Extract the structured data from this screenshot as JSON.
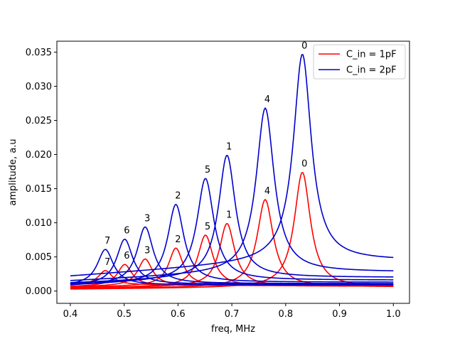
{
  "chart_data": {
    "type": "line",
    "title": "",
    "xlabel": "freq, MHz",
    "ylabel": "amplitude, a.u",
    "xlim": [
      0.375,
      1.03
    ],
    "ylim": [
      -0.0018,
      0.0366
    ],
    "xticks": [
      "0.4",
      "0.5",
      "0.6",
      "0.7",
      "0.8",
      "0.9",
      "1.0"
    ],
    "xtick_values": [
      0.4,
      0.5,
      0.6,
      0.7,
      0.8,
      0.9,
      1.0
    ],
    "yticks": [
      "0.000",
      "0.005",
      "0.010",
      "0.015",
      "0.020",
      "0.025",
      "0.030",
      "0.035"
    ],
    "ytick_values": [
      0,
      0.005,
      0.01,
      0.015,
      0.02,
      0.025,
      0.03,
      0.035
    ],
    "x_range": [
      0.4,
      1.0
    ],
    "grid": false,
    "legend_position": "top-right",
    "legend": [
      {
        "label": "C_in = 1pF",
        "color": "#ff0000"
      },
      {
        "label": "C_in = 2pF",
        "color": "#0000cc"
      }
    ],
    "series": [
      {
        "group": "C_in = 1pF",
        "color": "#ff0000",
        "label": "0",
        "peak_x": 0.831,
        "peak_y": 0.0174,
        "width": 0.018,
        "tail": 0.00055
      },
      {
        "group": "C_in = 1pF",
        "color": "#ff0000",
        "label": "4",
        "peak_x": 0.762,
        "peak_y": 0.0134,
        "width": 0.018,
        "tail": 0.0006
      },
      {
        "group": "C_in = 1pF",
        "color": "#ff0000",
        "label": "1",
        "peak_x": 0.691,
        "peak_y": 0.0099,
        "width": 0.017,
        "tail": 0.0007
      },
      {
        "group": "C_in = 1pF",
        "color": "#ff0000",
        "label": "5",
        "peak_x": 0.651,
        "peak_y": 0.0082,
        "width": 0.017,
        "tail": 0.0007
      },
      {
        "group": "C_in = 1pF",
        "color": "#ff0000",
        "label": "2",
        "peak_x": 0.596,
        "peak_y": 0.0063,
        "width": 0.016,
        "tail": 0.0008
      },
      {
        "group": "C_in = 1pF",
        "color": "#ff0000",
        "label": "3",
        "peak_x": 0.539,
        "peak_y": 0.0047,
        "width": 0.016,
        "tail": 0.0008
      },
      {
        "group": "C_in = 1pF",
        "color": "#ff0000",
        "label": "6",
        "peak_x": 0.501,
        "peak_y": 0.0039,
        "width": 0.016,
        "tail": 0.0008
      },
      {
        "group": "C_in = 1pF",
        "color": "#ff0000",
        "label": "7",
        "peak_x": 0.465,
        "peak_y": 0.003,
        "width": 0.016,
        "tail": 0.0009
      },
      {
        "group": "C_in = 2pF",
        "color": "#0000cc",
        "label": "0",
        "peak_x": 0.831,
        "peak_y": 0.0347,
        "width": 0.02,
        "tail": 0.0045
      },
      {
        "group": "C_in = 2pF",
        "color": "#0000cc",
        "label": "4",
        "peak_x": 0.762,
        "peak_y": 0.0268,
        "width": 0.02,
        "tail": 0.0028
      },
      {
        "group": "C_in = 2pF",
        "color": "#0000cc",
        "label": "1",
        "peak_x": 0.691,
        "peak_y": 0.0199,
        "width": 0.019,
        "tail": 0.002
      },
      {
        "group": "C_in = 2pF",
        "color": "#0000cc",
        "label": "5",
        "peak_x": 0.651,
        "peak_y": 0.0165,
        "width": 0.019,
        "tail": 0.0016
      },
      {
        "group": "C_in = 2pF",
        "color": "#0000cc",
        "label": "2",
        "peak_x": 0.596,
        "peak_y": 0.0127,
        "width": 0.018,
        "tail": 0.0013
      },
      {
        "group": "C_in = 2pF",
        "color": "#0000cc",
        "label": "3",
        "peak_x": 0.539,
        "peak_y": 0.0094,
        "width": 0.018,
        "tail": 0.0011
      },
      {
        "group": "C_in = 2pF",
        "color": "#0000cc",
        "label": "6",
        "peak_x": 0.501,
        "peak_y": 0.0076,
        "width": 0.018,
        "tail": 0.001
      },
      {
        "group": "C_in = 2pF",
        "color": "#0000cc",
        "label": "7",
        "peak_x": 0.465,
        "peak_y": 0.0061,
        "width": 0.018,
        "tail": 0.0009
      }
    ]
  }
}
